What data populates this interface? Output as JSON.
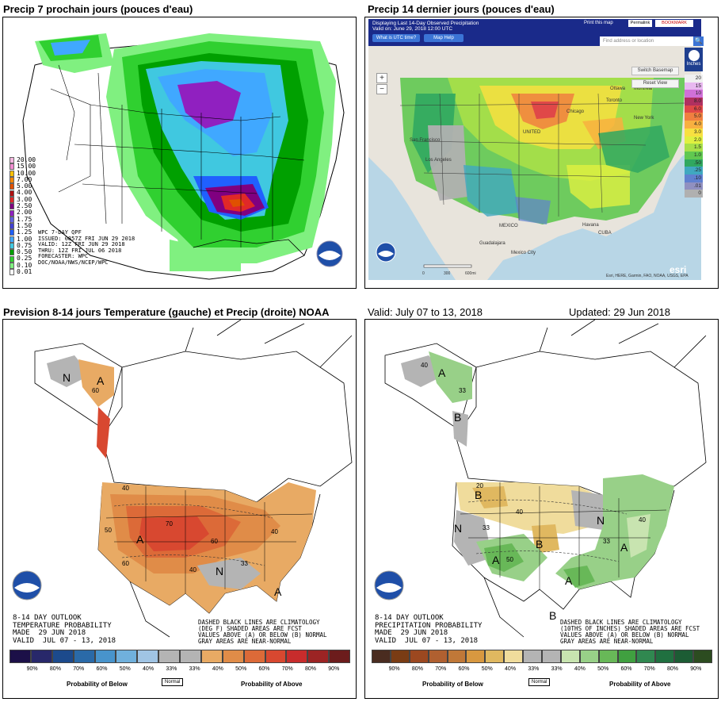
{
  "headings": {
    "top_left": "Precip 7 prochain jours (pouces d'eau)",
    "top_right": "Precip 14 dernier jours (pouces d'eau)",
    "bottom_left": "Prevision 8-14 jours Temperature (gauche) et Precip (droite) NOAA",
    "valid": "Valid: July 07 to 13, 2018",
    "updated": "Updated: 29 Jun 2018"
  },
  "wpc": {
    "legend": [
      {
        "value": "20.00",
        "color": "#f4b8e0"
      },
      {
        "value": "15.00",
        "color": "#f08cd0"
      },
      {
        "value": "10.00",
        "color": "#ffc000"
      },
      {
        "value": "7.00",
        "color": "#ff8800"
      },
      {
        "value": "5.00",
        "color": "#e05000"
      },
      {
        "value": "4.00",
        "color": "#b01010"
      },
      {
        "value": "3.00",
        "color": "#e02828"
      },
      {
        "value": "2.50",
        "color": "#800080"
      },
      {
        "value": "2.00",
        "color": "#9020c0"
      },
      {
        "value": "1.75",
        "color": "#6060e0"
      },
      {
        "value": "1.50",
        "color": "#4040d0"
      },
      {
        "value": "1.25",
        "color": "#2060ff"
      },
      {
        "value": "1.00",
        "color": "#40a8ff"
      },
      {
        "value": "0.75",
        "color": "#40c8e0"
      },
      {
        "value": "0.50",
        "color": "#00a000"
      },
      {
        "value": "0.25",
        "color": "#30d030"
      },
      {
        "value": "0.10",
        "color": "#80f080"
      },
      {
        "value": "0.01",
        "color": "#ffffff"
      }
    ],
    "info": [
      "WPC 7-DAY QPF",
      "ISSUED: 0857Z FRI JUN 29 2018",
      "VALID: 12Z FRI JUN 29 2018",
      "THRU: 12Z FRI JUL 06 2018",
      "FORECASTER: WPC",
      "DOC/NOAA/NWS/NCEP/WPC"
    ]
  },
  "esri": {
    "title_line1": "Displaying Last 14-Day Observed Precipitation",
    "title_line2": "Valid on: June 29, 2018 12:00 UTC",
    "utc_button": "What is UTC time?",
    "help_button": "Map Help",
    "print_label": "Print this map",
    "permalink_label": "Permalink",
    "bookmark_label": "BOOKMARK",
    "search_placeholder": "Find address or location",
    "switch_basemap": "Switch Basemap",
    "reset_view": "Reset View",
    "units_label": "Inches",
    "zoom_in": "+",
    "zoom_out": "−",
    "scale_labels": [
      "0",
      "300",
      "600mi"
    ],
    "attribution": "Esri, HERE, Garmin, FAO, NOAA, USGS, EPA",
    "esri_logo": "esri",
    "place_labels": {
      "ottawa": "Ottawa",
      "montreal": "Montréal",
      "toronto": "Toronto",
      "chicago": "Chicago",
      "new_york": "New York",
      "united": "UNITED",
      "san_francisco": "San Francisco",
      "los_angeles": "Los Angeles",
      "mexico": "MEXICO",
      "havana": "Havana",
      "cuba": "CUBA",
      "guadalajara": "Guadalajara",
      "mexico_city": "Mexico City"
    },
    "scale": [
      {
        "value": "20",
        "color": "#f0f0f0"
      },
      {
        "value": "15",
        "color": "#e8b8f0"
      },
      {
        "value": "10",
        "color": "#d070d8"
      },
      {
        "value": "8.0",
        "color": "#b03060"
      },
      {
        "value": "6.0",
        "color": "#e04848"
      },
      {
        "value": "5.0",
        "color": "#f08040"
      },
      {
        "value": "4.0",
        "color": "#f8b040"
      },
      {
        "value": "3.0",
        "color": "#f8e040"
      },
      {
        "value": "2.0",
        "color": "#e0f040"
      },
      {
        "value": "1.5",
        "color": "#a8e048"
      },
      {
        "value": "1.0",
        "color": "#60c850"
      },
      {
        "value": ".50",
        "color": "#30a860"
      },
      {
        "value": ".25",
        "color": "#40a8c0"
      },
      {
        "value": ".10",
        "color": "#6080d0"
      },
      {
        "value": ".01",
        "color": "#9090c0"
      },
      {
        "value": "0",
        "color": "#b0b0b0"
      }
    ]
  },
  "temperature": {
    "outlook_lines": [
      "8-14 DAY OUTLOOK",
      "TEMPERATURE PROBABILITY",
      "MADE  29 JUN 2018",
      "VALID  JUL 07 - 13, 2018"
    ],
    "clim_lines": [
      "DASHED BLACK LINES ARE CLIMATOLOGY",
      "(DEG F) SHADED AREAS ARE FCST",
      "VALUES ABOVE (A) OR BELOW (B) NORMAL",
      "GRAY AREAS ARE NEAR-NORMAL"
    ],
    "scale_colors": [
      "#1c1048",
      "#28286a",
      "#1c4a8c",
      "#2a6aa8",
      "#4894cc",
      "#70b0dc",
      "#a0c4e4",
      "#b4b4b4",
      "#b4b4b4",
      "#e8aa64",
      "#e08c48",
      "#dc6a38",
      "#d84830",
      "#c82c2c",
      "#9c2424",
      "#6c1c1c"
    ],
    "scale_labels": [
      "90%",
      "80%",
      "70%",
      "60%",
      "50%",
      "40%",
      "33%",
      "33%",
      "40%",
      "50%",
      "60%",
      "70%",
      "80%",
      "90%"
    ],
    "prob_below": "Probability of Below",
    "normal": "Normal",
    "prob_above": "Probability of Above",
    "letters": {
      "n_alaska": "N",
      "a_alaska": "A",
      "a_main": "A",
      "n_south": "N",
      "a_florida": "A"
    },
    "contour_labels": {
      "c_alaska": "60",
      "c_north": "40",
      "c_west": "50",
      "c_central": "70",
      "c_plains": "60",
      "c_east": "40",
      "c_gulf": "33",
      "c_sw": "60",
      "c_mid": "40"
    }
  },
  "precipitation": {
    "outlook_lines": [
      "8-14 DAY OUTLOOK",
      "PRECIPITATION PROBABILITY",
      "MADE  29 JUN 2018",
      "VALID  JUL 07 - 13, 2018"
    ],
    "clim_lines": [
      "DASHED BLACK LINES ARE CLIMATOLOGY",
      "(10THS OF INCHES) SHADED AREAS ARE FCST",
      "VALUES ABOVE (A) OR BELOW (B) NORMAL",
      "GRAY AREAS ARE NEAR-NORMAL"
    ],
    "scale_colors": [
      "#4a2c20",
      "#7a3c14",
      "#9c4820",
      "#b06030",
      "#c07838",
      "#d89840",
      "#e0b860",
      "#f0dc9c",
      "#b4b4b4",
      "#b4b4b4",
      "#c8e4b0",
      "#98d088",
      "#68b858",
      "#40a040",
      "#308850",
      "#207040",
      "#1c5c34",
      "#2c4c20"
    ],
    "scale_labels": [
      "90%",
      "80%",
      "70%",
      "60%",
      "50%",
      "40%",
      "33%",
      "33%",
      "40%",
      "50%",
      "60%",
      "70%",
      "80%",
      "90%"
    ],
    "prob_below": "Probability of Below",
    "normal": "Normal",
    "prob_above": "Probability of Above",
    "letters": {
      "a_alaska": "A",
      "b_alaska": "B",
      "b_north": "B",
      "n_west": "N",
      "b_central": "B",
      "n_east": "N",
      "a_east": "A",
      "a_south": "A",
      "a_sw": "A",
      "b_texas": "B"
    },
    "contour_labels": {
      "c1": "40",
      "c2": "33",
      "c3": "20",
      "c4": "40",
      "c5": "33",
      "c6": "50",
      "c7": "40",
      "c8": "33"
    }
  }
}
